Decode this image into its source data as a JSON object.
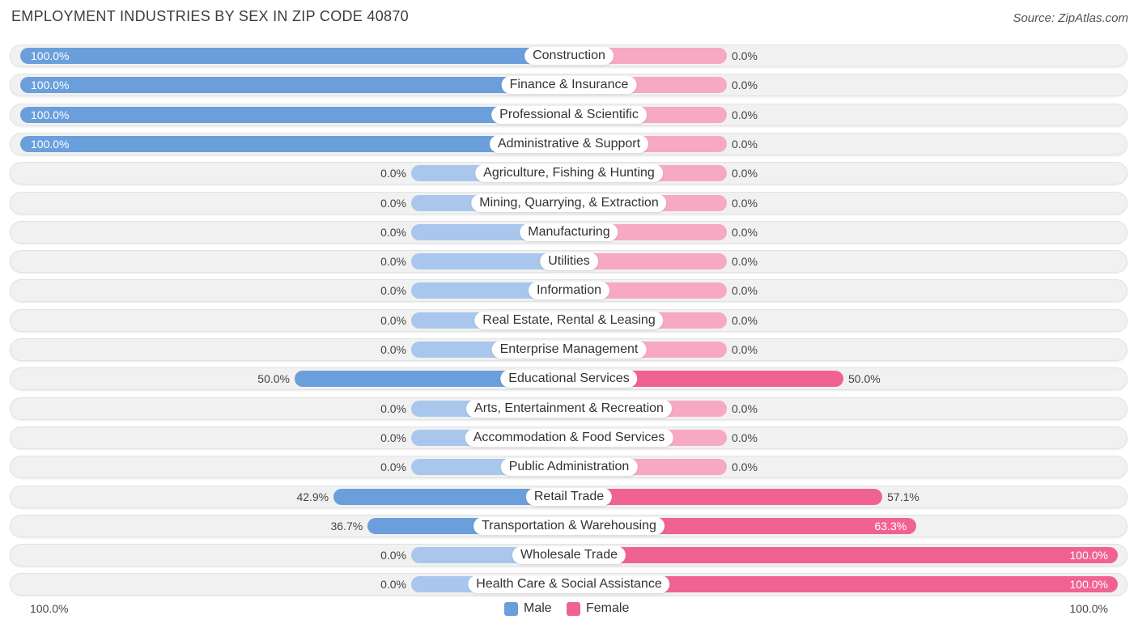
{
  "title": "EMPLOYMENT INDUSTRIES BY SEX IN ZIP CODE 40870",
  "source": "Source: ZipAtlas.com",
  "colors": {
    "male": "#6a9fdc",
    "male_light": "#a9c7ec",
    "female": "#f06292",
    "female_light": "#f7a8c3"
  },
  "legend": {
    "male": "Male",
    "female": "Female"
  },
  "axis": {
    "left": "100.0%",
    "right": "100.0%"
  },
  "chart_data": {
    "type": "bar",
    "orientation": "diverging-horizontal",
    "categories": [
      "Construction",
      "Finance & Insurance",
      "Professional & Scientific",
      "Administrative & Support",
      "Agriculture, Fishing & Hunting",
      "Mining, Quarrying, & Extraction",
      "Manufacturing",
      "Utilities",
      "Information",
      "Real Estate, Rental & Leasing",
      "Enterprise Management",
      "Educational Services",
      "Arts, Entertainment & Recreation",
      "Accommodation & Food Services",
      "Public Administration",
      "Retail Trade",
      "Transportation & Warehousing",
      "Wholesale Trade",
      "Health Care & Social Assistance"
    ],
    "series": [
      {
        "name": "Male",
        "values": [
          100.0,
          100.0,
          100.0,
          100.0,
          0.0,
          0.0,
          0.0,
          0.0,
          0.0,
          0.0,
          0.0,
          50.0,
          0.0,
          0.0,
          0.0,
          42.9,
          36.7,
          0.0,
          0.0
        ]
      },
      {
        "name": "Female",
        "values": [
          0.0,
          0.0,
          0.0,
          0.0,
          0.0,
          0.0,
          0.0,
          0.0,
          0.0,
          0.0,
          0.0,
          50.0,
          0.0,
          0.0,
          0.0,
          57.1,
          63.3,
          100.0,
          100.0
        ]
      }
    ],
    "male_labels": [
      "100.0%",
      "100.0%",
      "100.0%",
      "100.0%",
      "0.0%",
      "0.0%",
      "0.0%",
      "0.0%",
      "0.0%",
      "0.0%",
      "0.0%",
      "50.0%",
      "0.0%",
      "0.0%",
      "0.0%",
      "42.9%",
      "36.7%",
      "0.0%",
      "0.0%"
    ],
    "female_labels": [
      "0.0%",
      "0.0%",
      "0.0%",
      "0.0%",
      "0.0%",
      "0.0%",
      "0.0%",
      "0.0%",
      "0.0%",
      "0.0%",
      "0.0%",
      "50.0%",
      "0.0%",
      "0.0%",
      "0.0%",
      "57.1%",
      "63.3%",
      "100.0%",
      "100.0%"
    ],
    "xlim": [
      0,
      100
    ],
    "legend_position": "bottom-center"
  }
}
